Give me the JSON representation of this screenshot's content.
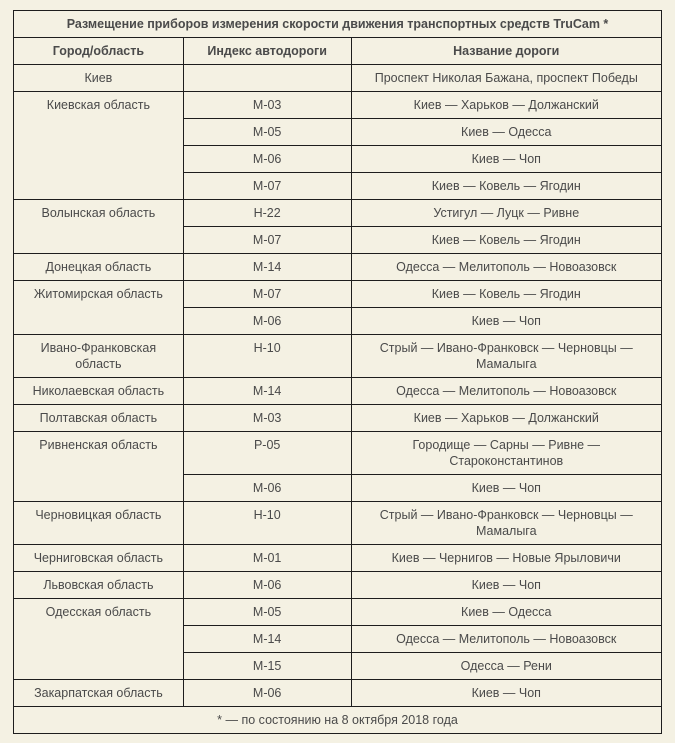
{
  "title": "Размещение приборов измерения скорости движения транспортных средств TruCam *",
  "header": {
    "columns": [
      "Город/область",
      "Индекс автодороги",
      "Название дороги"
    ]
  },
  "rows": [
    {
      "region": "Киев",
      "roads": [
        {
          "index": "",
          "name": "Проспект Николая Бажана, проспект Победы"
        }
      ]
    },
    {
      "region": "Киевская область",
      "roads": [
        {
          "index": "М-03",
          "name": "Киев — Харьков — Должанский"
        },
        {
          "index": "М-05",
          "name": "Киев — Одесса"
        },
        {
          "index": "М-06",
          "name": "Киев — Чоп"
        },
        {
          "index": "М-07",
          "name": "Киев — Ковель — Ягодин"
        }
      ]
    },
    {
      "region": "Волынская область",
      "roads": [
        {
          "index": "Н-22",
          "name": "Устигул — Луцк — Ривне"
        },
        {
          "index": "М-07",
          "name": "Киев — Ковель — Ягодин"
        }
      ]
    },
    {
      "region": "Донецкая область",
      "roads": [
        {
          "index": "М-14",
          "name": "Одесса — Мелитополь — Новоазовск"
        }
      ]
    },
    {
      "region": "Житомирская область",
      "roads": [
        {
          "index": "М-07",
          "name": "Киев — Ковель — Ягодин"
        },
        {
          "index": "М-06",
          "name": "Киев — Чоп"
        }
      ]
    },
    {
      "region": "Ивано-Франковская область",
      "roads": [
        {
          "index": "Н-10",
          "name": "Стрый — Ивано-Франковск — Черновцы — Мамалыга"
        }
      ]
    },
    {
      "region": "Николаевская область",
      "roads": [
        {
          "index": "М-14",
          "name": "Одесса — Мелитополь — Новоазовск"
        }
      ]
    },
    {
      "region": "Полтавская область",
      "roads": [
        {
          "index": "М-03",
          "name": "Киев — Харьков — Должанский"
        }
      ]
    },
    {
      "region": "Ривненская область",
      "roads": [
        {
          "index": "Р-05",
          "name": "Городище — Сарны — Ривне — Староконстантинов"
        },
        {
          "index": "М-06",
          "name": "Киев — Чоп"
        }
      ]
    },
    {
      "region": "Черновицкая область",
      "roads": [
        {
          "index": "Н-10",
          "name": "Стрый — Ивано-Франковск — Черновцы — Мамалыга"
        }
      ]
    },
    {
      "region": "Черниговская область",
      "roads": [
        {
          "index": "М-01",
          "name": "Киев — Чернигов — Новые Ярыловичи"
        }
      ]
    },
    {
      "region": "Львовская область",
      "roads": [
        {
          "index": "М-06",
          "name": "Киев — Чоп"
        }
      ]
    },
    {
      "region": "Одесская область",
      "roads": [
        {
          "index": "М-05",
          "name": "Киев — Одесса"
        },
        {
          "index": "М-14",
          "name": "Одесса — Мелитополь — Новоазовск"
        },
        {
          "index": "М-15",
          "name": "Одесса — Рени"
        }
      ]
    },
    {
      "region": "Закарпатская область",
      "roads": [
        {
          "index": "М-06",
          "name": "Киев — Чоп"
        }
      ]
    }
  ],
  "footnote": "* — по состоянию на 8 октября 2018 года",
  "colors": {
    "background": "#f4f1e3",
    "border": "#1d1d1d",
    "title_text": "#4e6d65",
    "header_text": "#2e2e2e",
    "cell_text": "#4a4a4a"
  }
}
